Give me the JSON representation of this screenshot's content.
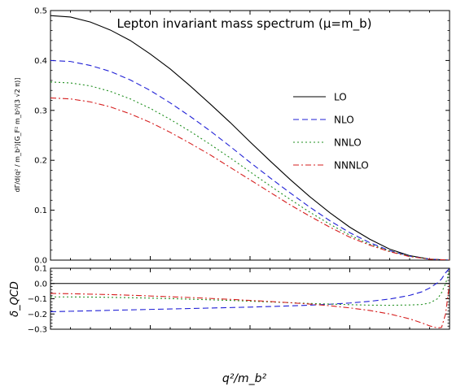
{
  "chart_data": [
    {
      "type": "line",
      "title": "Lepton invariant mass spectrum (μ=m_b)",
      "ylabel": "dΓ/d(q² / m_b²)[G_F² m_b⁵/(3 √2 π)]",
      "xlim": [
        0,
        1
      ],
      "ylim": [
        0,
        0.5
      ],
      "yticks": [
        "0.0",
        "0.1",
        "0.2",
        "0.3",
        "0.4",
        "0.5"
      ],
      "legend_position": "center-right",
      "x": [
        0,
        0.05,
        0.1,
        0.15,
        0.2,
        0.25,
        0.3,
        0.35,
        0.4,
        0.45,
        0.5,
        0.55,
        0.6,
        0.65,
        0.7,
        0.75,
        0.8,
        0.85,
        0.9,
        0.95,
        1.0
      ],
      "series": [
        {
          "name": "LO",
          "color": "#000000",
          "dash": "solid",
          "values": [
            0.49,
            0.487,
            0.477,
            0.461,
            0.44,
            0.413,
            0.383,
            0.349,
            0.313,
            0.276,
            0.237,
            0.199,
            0.162,
            0.127,
            0.095,
            0.066,
            0.042,
            0.022,
            0.009,
            0.002,
            0.0
          ]
        },
        {
          "name": "NLO",
          "color": "#1f1fd6",
          "dash": "dashed",
          "values": [
            0.4,
            0.398,
            0.39,
            0.378,
            0.361,
            0.34,
            0.315,
            0.288,
            0.259,
            0.228,
            0.196,
            0.165,
            0.135,
            0.106,
            0.079,
            0.055,
            0.035,
            0.019,
            0.008,
            0.002,
            0.0
          ]
        },
        {
          "name": "NNLO",
          "color": "#1f8f1f",
          "dash": "dotted",
          "values": [
            0.357,
            0.355,
            0.349,
            0.338,
            0.323,
            0.304,
            0.282,
            0.258,
            0.232,
            0.205,
            0.177,
            0.149,
            0.122,
            0.096,
            0.072,
            0.05,
            0.032,
            0.018,
            0.008,
            0.002,
            0.0
          ]
        },
        {
          "name": "NNNLO",
          "color": "#d61f1f",
          "dash": "dashdot",
          "values": [
            0.325,
            0.323,
            0.317,
            0.307,
            0.293,
            0.276,
            0.256,
            0.234,
            0.211,
            0.186,
            0.161,
            0.136,
            0.111,
            0.088,
            0.066,
            0.046,
            0.03,
            0.017,
            0.007,
            0.002,
            0.0
          ]
        }
      ]
    },
    {
      "type": "line",
      "xlabel": "q²/m_b²",
      "ylabel": "δ_QCD",
      "xlim": [
        0,
        1
      ],
      "ylim": [
        -0.3,
        0.1
      ],
      "yticks": [
        "−0.3",
        "−0.2",
        "−0.1",
        "0.0",
        "0.1"
      ],
      "reference_line": 0,
      "x": [
        0,
        0.05,
        0.1,
        0.15,
        0.2,
        0.25,
        0.3,
        0.35,
        0.4,
        0.45,
        0.5,
        0.55,
        0.6,
        0.65,
        0.7,
        0.75,
        0.8,
        0.85,
        0.9,
        0.93,
        0.95,
        0.97,
        0.98,
        0.99,
        1.0
      ],
      "series": [
        {
          "color": "#000000",
          "dash": "solid",
          "values": [
            0,
            0,
            0,
            0,
            0,
            0,
            0,
            0,
            0,
            0,
            0,
            0,
            0,
            0,
            0,
            0,
            0,
            0,
            0,
            0,
            0,
            0,
            0,
            0,
            0
          ]
        },
        {
          "color": "#1f1fd6",
          "dash": "dashed",
          "values": [
            -0.185,
            -0.182,
            -0.179,
            -0.176,
            -0.173,
            -0.17,
            -0.167,
            -0.164,
            -0.161,
            -0.158,
            -0.155,
            -0.151,
            -0.147,
            -0.142,
            -0.136,
            -0.128,
            -0.117,
            -0.102,
            -0.078,
            -0.055,
            -0.03,
            0.005,
            0.03,
            0.07,
            0.1
          ]
        },
        {
          "color": "#1f8f1f",
          "dash": "dotted",
          "values": [
            -0.088,
            -0.088,
            -0.089,
            -0.091,
            -0.093,
            -0.096,
            -0.099,
            -0.103,
            -0.107,
            -0.111,
            -0.116,
            -0.121,
            -0.126,
            -0.131,
            -0.135,
            -0.139,
            -0.142,
            -0.143,
            -0.141,
            -0.138,
            -0.128,
            -0.1,
            -0.06,
            0.0,
            0.08
          ]
        },
        {
          "color": "#d61f1f",
          "dash": "dashdot",
          "values": [
            -0.065,
            -0.067,
            -0.07,
            -0.073,
            -0.077,
            -0.082,
            -0.087,
            -0.092,
            -0.098,
            -0.104,
            -0.111,
            -0.118,
            -0.126,
            -0.135,
            -0.146,
            -0.16,
            -0.177,
            -0.2,
            -0.232,
            -0.258,
            -0.278,
            -0.292,
            -0.288,
            -0.2,
            0.0
          ]
        }
      ]
    }
  ]
}
